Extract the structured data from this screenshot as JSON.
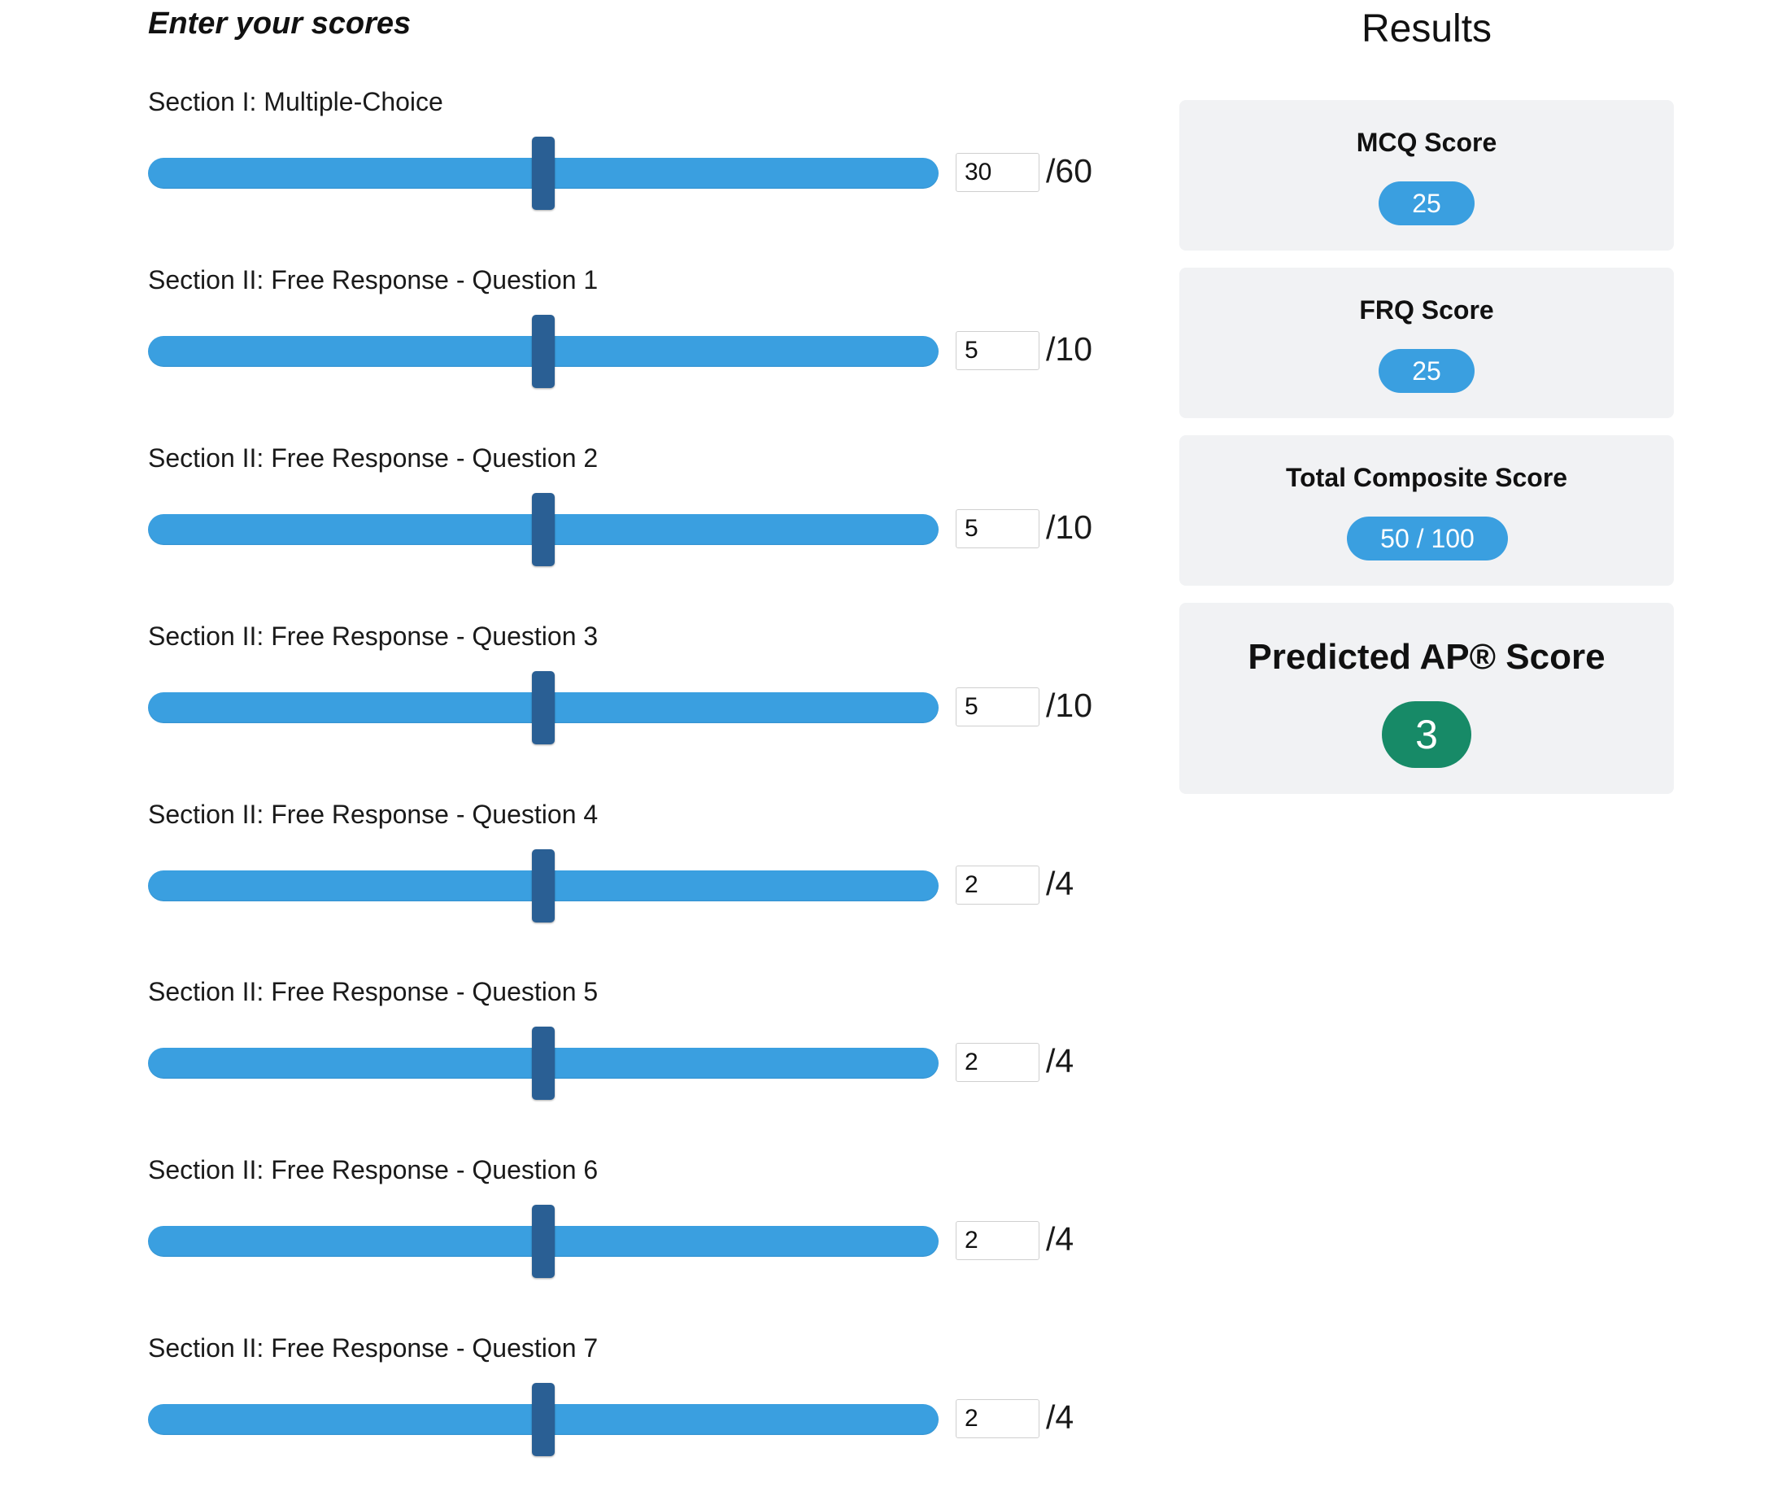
{
  "left": {
    "title": "Enter your scores",
    "sections": [
      {
        "label": "Section I: Multiple-Choice",
        "value": "30",
        "max_label": "/60",
        "value_num": 30,
        "max_num": 60
      },
      {
        "label": "Section II: Free Response - Question 1",
        "value": "5",
        "max_label": "/10",
        "value_num": 5,
        "max_num": 10
      },
      {
        "label": "Section II: Free Response - Question 2",
        "value": "5",
        "max_label": "/10",
        "value_num": 5,
        "max_num": 10
      },
      {
        "label": "Section II: Free Response - Question 3",
        "value": "5",
        "max_label": "/10",
        "value_num": 5,
        "max_num": 10
      },
      {
        "label": "Section II: Free Response - Question 4",
        "value": "2",
        "max_label": "/4",
        "value_num": 2,
        "max_num": 4
      },
      {
        "label": "Section II: Free Response - Question 5",
        "value": "2",
        "max_label": "/4",
        "value_num": 2,
        "max_num": 4
      },
      {
        "label": "Section II: Free Response - Question 6",
        "value": "2",
        "max_label": "/4",
        "value_num": 2,
        "max_num": 4
      },
      {
        "label": "Section II: Free Response - Question 7",
        "value": "2",
        "max_label": "/4",
        "value_num": 2,
        "max_num": 4
      }
    ]
  },
  "results": {
    "title": "Results",
    "mcq": {
      "label": "MCQ Score",
      "value": "25"
    },
    "frq": {
      "label": "FRQ Score",
      "value": "25"
    },
    "composite": {
      "label": "Total Composite Score",
      "value": "50 / 100"
    },
    "ap": {
      "label": "Predicted AP® Score",
      "value": "3"
    }
  },
  "colors": {
    "slider_track": "#3a9fe0",
    "slider_thumb": "#2a5f94",
    "pill": "#3a9fe0",
    "ap_badge": "#178a67",
    "card_bg": "#f1f2f4"
  }
}
